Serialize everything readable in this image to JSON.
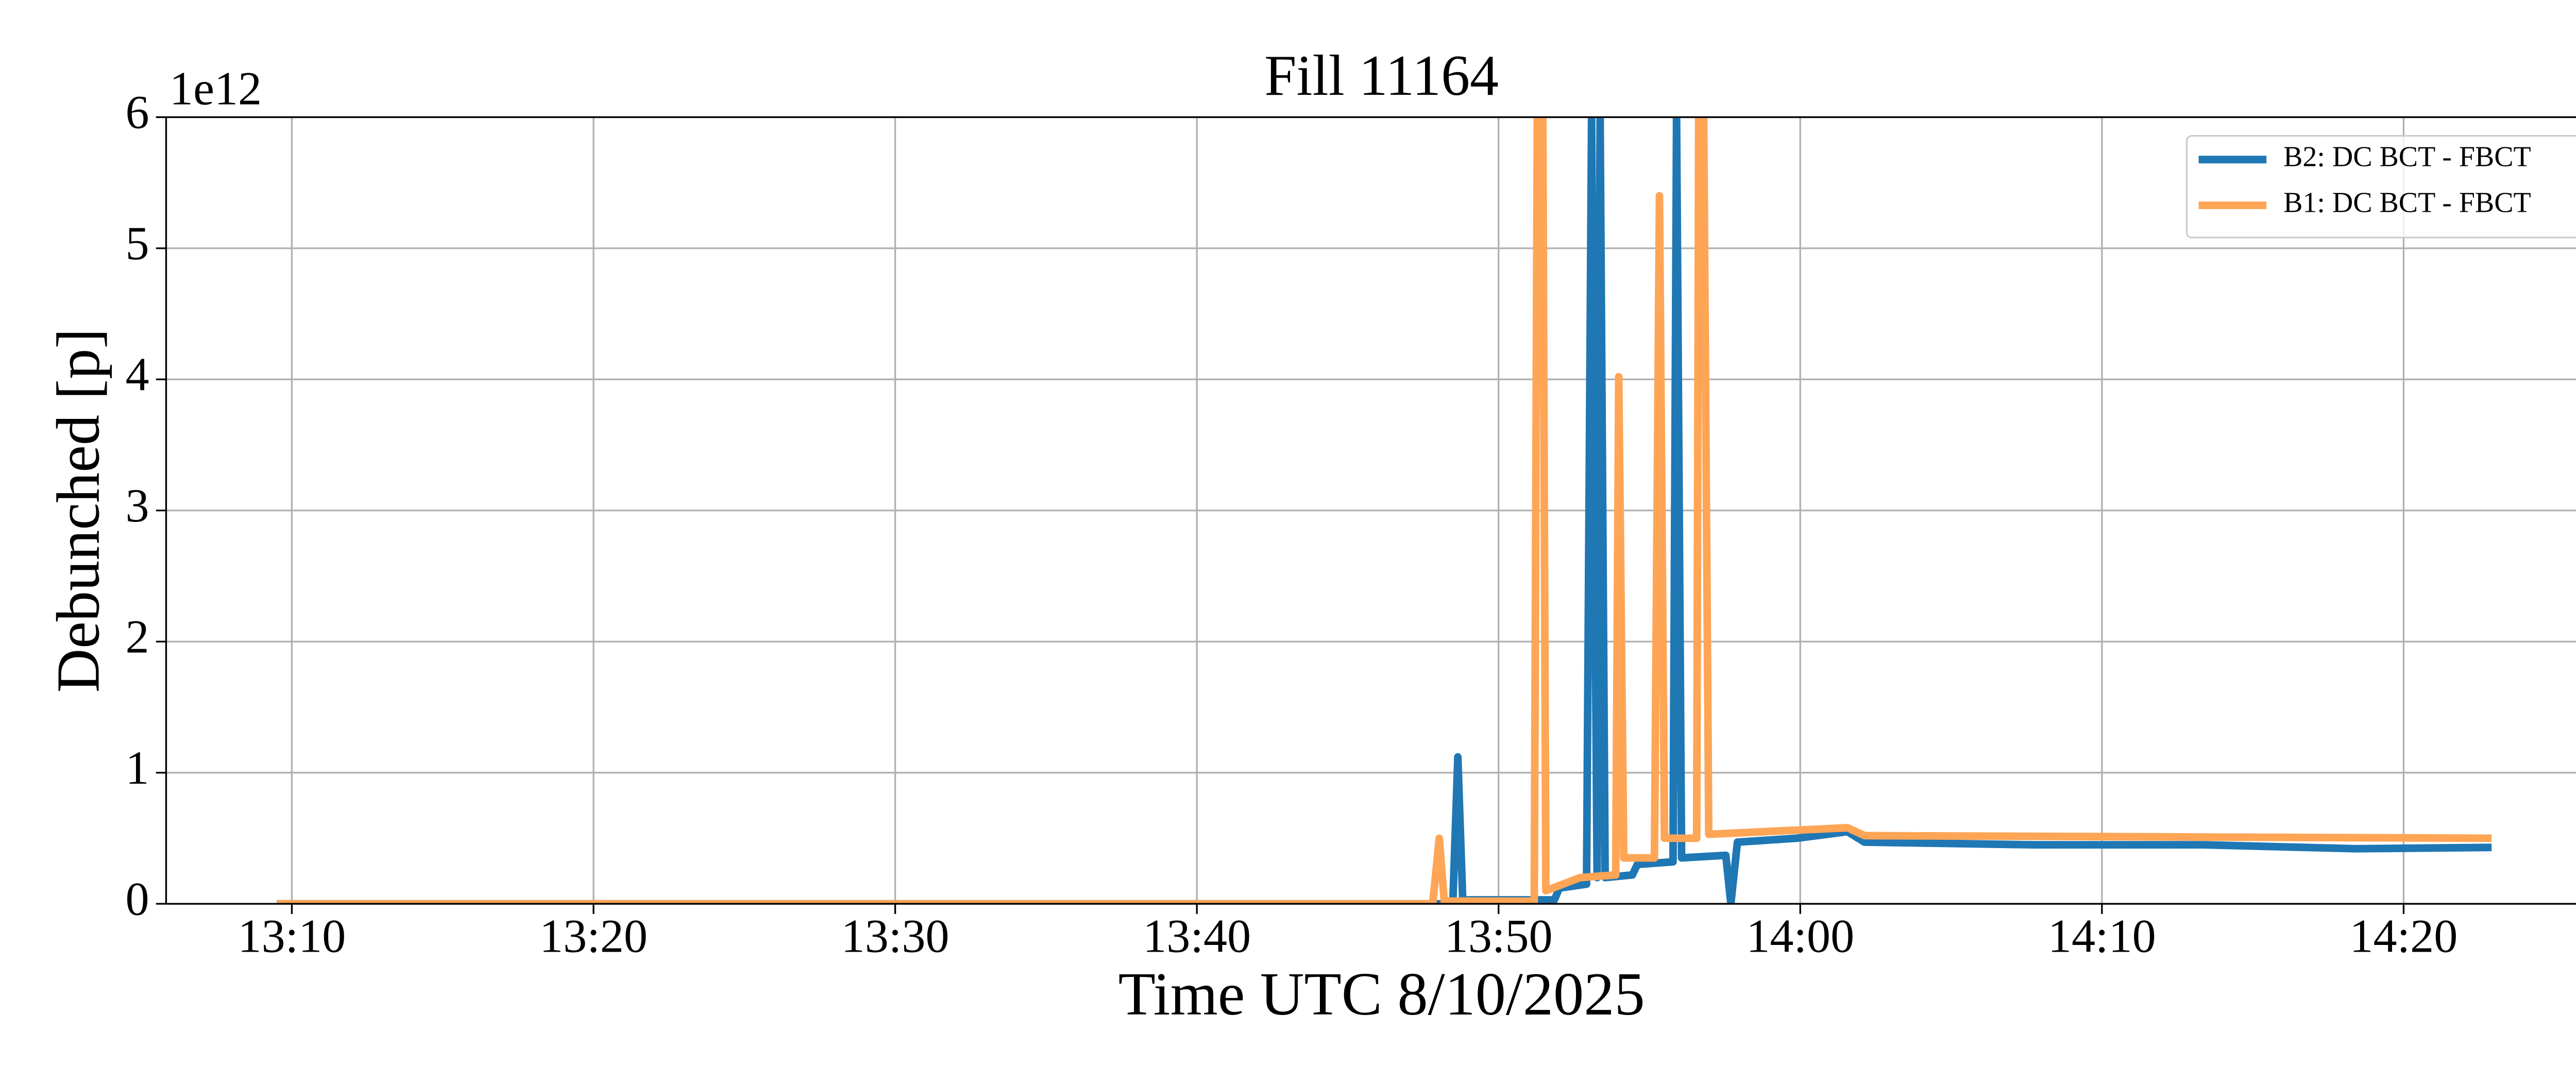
{
  "chart_data": {
    "type": "line",
    "title": "Fill 11164",
    "x_label": "Time UTC 8/10/2025",
    "y_label": "Debunched [p]",
    "y_offset_text": "1e12",
    "xlim": [
      "13:05:50",
      "14:26:28"
    ],
    "xticks": [
      "13:10",
      "13:20",
      "13:30",
      "13:40",
      "13:50",
      "14:00",
      "14:10",
      "14:20"
    ],
    "ylim": [
      0,
      6
    ],
    "yticks": [
      0,
      1,
      2,
      3,
      4,
      5,
      6
    ],
    "grid": true,
    "legend": "upper right",
    "series": [
      {
        "name": "B2: DC BCT - FBCT",
        "color": "#1f77b4",
        "x": [
          "13:09:30",
          "13:48:29",
          "13:48:39",
          "13:48:49",
          "13:48:59",
          "13:51:51",
          "13:52:01",
          "13:52:55",
          "13:53:05",
          "13:53:16",
          "13:53:22",
          "13:53:32",
          "13:54:26",
          "13:54:36",
          "13:55:47",
          "13:55:54",
          "13:56:04",
          "13:57:32",
          "13:57:42",
          "13:57:55",
          "13:59:53",
          "14:01:34",
          "14:02:08",
          "14:07:45",
          "14:13:22",
          "14:18:26",
          "14:22:55"
        ],
        "values": [
          0,
          0,
          1.12,
          0,
          0.03,
          0.03,
          0.12,
          0.15,
          6,
          0.2,
          6,
          0.2,
          0.22,
          0.3,
          0.32,
          6,
          0.35,
          0.37,
          0,
          0.47,
          0.5,
          0.55,
          0.47,
          0.45,
          0.45,
          0.42,
          0.43
        ]
      },
      {
        "name": "B1: DC BCT - FBCT",
        "color": "#ffa556",
        "x": [
          "13:09:30",
          "13:47:49",
          "13:48:02",
          "13:48:12",
          "13:51:11",
          "13:51:17",
          "13:51:28",
          "13:51:34",
          "13:52:42",
          "13:53:53",
          "13:53:59",
          "13:54:09",
          "13:55:10",
          "13:55:20",
          "13:55:30",
          "13:56:34",
          "13:56:38",
          "13:56:48",
          "13:56:58",
          "14:01:34",
          "14:02:08",
          "14:22:55"
        ],
        "values": [
          0,
          0,
          0.5,
          0.02,
          0.02,
          6,
          6,
          0.1,
          0.2,
          0.22,
          4.02,
          0.35,
          0.35,
          5.4,
          0.5,
          0.5,
          6,
          6,
          0.53,
          0.58,
          0.52,
          0.5
        ]
      }
    ]
  }
}
